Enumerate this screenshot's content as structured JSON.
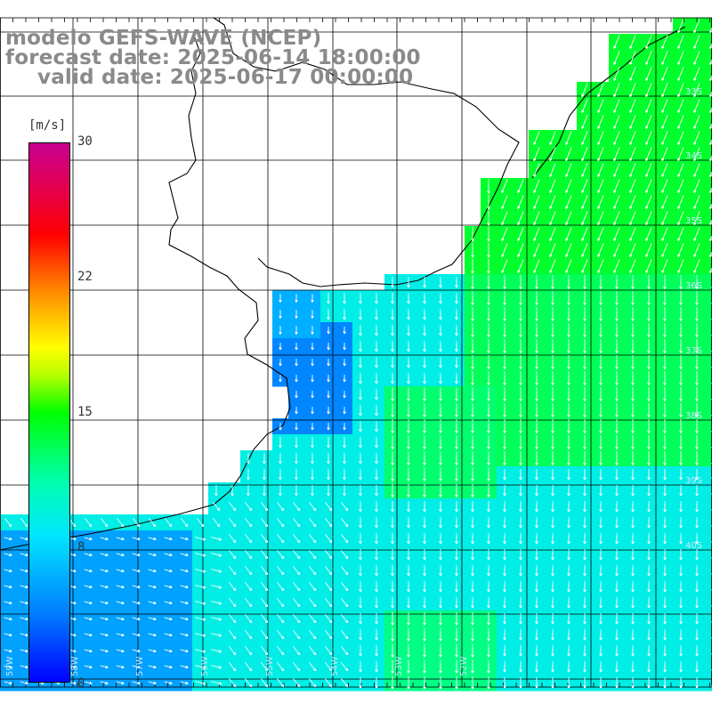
{
  "header": {
    "model": "modelo GEFS-WAVE (NCEP)",
    "forecast": "forecast date: 2025-06-14 18:00:00",
    "valid": "valid date: 2025-06-17 00:00:00"
  },
  "colorbar": {
    "unit": "[m/s]",
    "ticks": [
      "30",
      "22",
      "15",
      "8",
      "0"
    ],
    "range": [
      0,
      30
    ]
  },
  "map": {
    "variable": "wind speed and direction",
    "land_color": "#ffffff",
    "coastline_color": "#000000",
    "lat_labels": [
      "33S",
      "34S",
      "35S",
      "36S",
      "37S",
      "38S",
      "39S",
      "40S"
    ],
    "lon_labels": [
      "59W",
      "58W",
      "57W",
      "56W",
      "55W",
      "54W",
      "53W",
      "52W"
    ]
  }
}
